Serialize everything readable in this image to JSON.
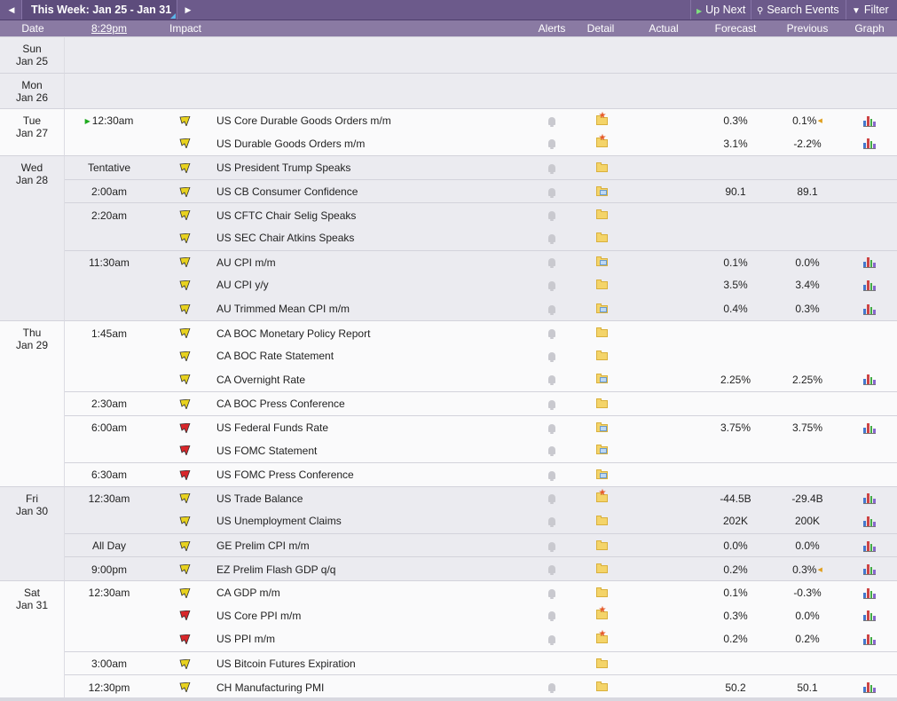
{
  "toolbar": {
    "prev_icon": "caret-left-icon",
    "week_label": "This Week: Jan 25 - Jan 31",
    "next_icon": "caret-right-icon",
    "up_next_label": "Up Next",
    "search_label": "Search Events",
    "filter_label": "Filter"
  },
  "columns": {
    "date": "Date",
    "time": "8:29pm",
    "impact": "Impact",
    "alerts": "Alerts",
    "detail": "Detail",
    "actual": "Actual",
    "forecast": "Forecast",
    "previous": "Previous",
    "graph": "Graph"
  },
  "colors": {
    "toolbar": "#6c5a8b",
    "header": "#8a7aa3",
    "impact_yellow": "#e8d21e",
    "impact_red": "#d9262a"
  },
  "days": [
    {
      "dow": "Sun",
      "date": "Jan 25",
      "shade": "grey",
      "events": []
    },
    {
      "dow": "Mon",
      "date": "Jan 26",
      "shade": "grey",
      "events": []
    },
    {
      "dow": "Tue",
      "date": "Jan 27",
      "shade": "white",
      "events": [
        {
          "time": "12:30am",
          "next": true,
          "impact": "yellow",
          "name": "US Core Durable Goods Orders m/m",
          "detail": "star",
          "forecast": "0.3%",
          "previous": "0.1%",
          "revised": true,
          "graph": true,
          "group_start": true
        },
        {
          "time": "",
          "impact": "yellow",
          "name": "US Durable Goods Orders m/m",
          "detail": "star",
          "forecast": "3.1%",
          "previous": "-2.2%",
          "graph": true
        }
      ]
    },
    {
      "dow": "Wed",
      "date": "Jan 28",
      "shade": "grey",
      "events": [
        {
          "time": "Tentative",
          "impact": "yellow",
          "name": "US President Trump Speaks",
          "detail": "plain",
          "forecast": "",
          "previous": "",
          "group_start": true
        },
        {
          "time": "2:00am",
          "impact": "yellow",
          "name": "US CB Consumer Confidence",
          "detail": "note",
          "forecast": "90.1",
          "previous": "89.1",
          "group_start": true
        },
        {
          "time": "2:20am",
          "impact": "yellow",
          "name": "US CFTC Chair Selig Speaks",
          "detail": "plain",
          "forecast": "",
          "previous": "",
          "group_start": true
        },
        {
          "time": "",
          "impact": "yellow",
          "name": "US SEC Chair Atkins Speaks",
          "detail": "plain",
          "forecast": "",
          "previous": ""
        },
        {
          "time": "11:30am",
          "impact": "yellow",
          "name": "AU CPI m/m",
          "detail": "note",
          "forecast": "0.1%",
          "previous": "0.0%",
          "graph": true,
          "group_start": true
        },
        {
          "time": "",
          "impact": "yellow",
          "name": "AU CPI y/y",
          "detail": "plain",
          "forecast": "3.5%",
          "previous": "3.4%",
          "graph": true
        },
        {
          "time": "",
          "impact": "yellow",
          "name": "AU Trimmed Mean CPI m/m",
          "detail": "note",
          "forecast": "0.4%",
          "previous": "0.3%",
          "graph": true
        }
      ]
    },
    {
      "dow": "Thu",
      "date": "Jan 29",
      "shade": "white",
      "events": [
        {
          "time": "1:45am",
          "impact": "yellow",
          "name": "CA BOC Monetary Policy Report",
          "detail": "plain",
          "forecast": "",
          "previous": "",
          "group_start": true
        },
        {
          "time": "",
          "impact": "yellow",
          "name": "CA BOC Rate Statement",
          "detail": "plain",
          "forecast": "",
          "previous": ""
        },
        {
          "time": "",
          "impact": "yellow",
          "name": "CA Overnight Rate",
          "detail": "note",
          "forecast": "2.25%",
          "previous": "2.25%",
          "graph": true
        },
        {
          "time": "2:30am",
          "impact": "yellow",
          "name": "CA BOC Press Conference",
          "detail": "plain",
          "forecast": "",
          "previous": "",
          "group_start": true
        },
        {
          "time": "6:00am",
          "impact": "red",
          "name": "US Federal Funds Rate",
          "detail": "note",
          "forecast": "3.75%",
          "previous": "3.75%",
          "graph": true,
          "group_start": true
        },
        {
          "time": "",
          "impact": "red",
          "name": "US FOMC Statement",
          "detail": "note",
          "forecast": "",
          "previous": ""
        },
        {
          "time": "6:30am",
          "impact": "red",
          "name": "US FOMC Press Conference",
          "detail": "note",
          "forecast": "",
          "previous": "",
          "group_start": true
        }
      ]
    },
    {
      "dow": "Fri",
      "date": "Jan 30",
      "shade": "grey",
      "events": [
        {
          "time": "12:30am",
          "impact": "yellow",
          "name": "US Trade Balance",
          "detail": "star",
          "forecast": "-44.5B",
          "previous": "-29.4B",
          "graph": true,
          "group_start": true
        },
        {
          "time": "",
          "impact": "yellow",
          "name": "US Unemployment Claims",
          "detail": "plain",
          "forecast": "202K",
          "previous": "200K",
          "graph": true
        },
        {
          "time": "All Day",
          "impact": "yellow",
          "name": "GE Prelim CPI m/m",
          "detail": "plain",
          "forecast": "0.0%",
          "previous": "0.0%",
          "graph": true,
          "group_start": true
        },
        {
          "time": "9:00pm",
          "impact": "yellow",
          "name": "EZ Prelim Flash GDP q/q",
          "detail": "plain",
          "forecast": "0.2%",
          "previous": "0.3%",
          "revised": true,
          "graph": true,
          "group_start": true
        }
      ]
    },
    {
      "dow": "Sat",
      "date": "Jan 31",
      "shade": "white",
      "events": [
        {
          "time": "12:30am",
          "impact": "yellow",
          "name": "CA GDP m/m",
          "detail": "plain",
          "forecast": "0.1%",
          "previous": "-0.3%",
          "graph": true,
          "group_start": true
        },
        {
          "time": "",
          "impact": "red",
          "name": "US Core PPI m/m",
          "detail": "star",
          "forecast": "0.3%",
          "previous": "0.0%",
          "graph": true
        },
        {
          "time": "",
          "impact": "red",
          "name": "US PPI m/m",
          "detail": "star",
          "forecast": "0.2%",
          "previous": "0.2%",
          "graph": true
        },
        {
          "time": "3:00am",
          "impact": "yellow",
          "name": "US Bitcoin Futures Expiration",
          "detail": "plain",
          "forecast": "",
          "previous": "",
          "no_alert": true,
          "group_start": true
        },
        {
          "time": "12:30pm",
          "impact": "yellow",
          "name": "CH Manufacturing PMI",
          "detail": "plain",
          "forecast": "50.2",
          "previous": "50.1",
          "graph": true,
          "group_start": true
        }
      ]
    }
  ]
}
